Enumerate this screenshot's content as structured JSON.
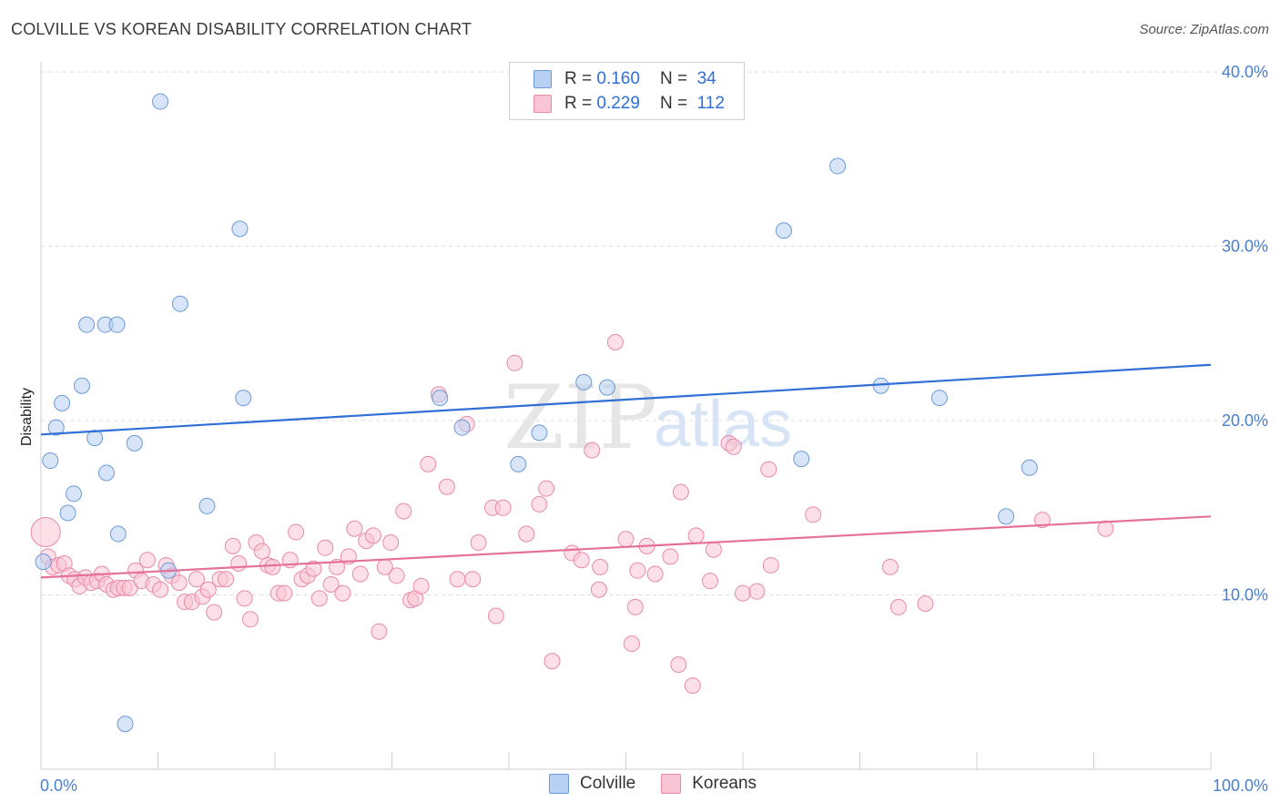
{
  "title": "COLVILLE VS KOREAN DISABILITY CORRELATION CHART",
  "source": "Source: ZipAtlas.com",
  "legend": {
    "rows": [
      {
        "r_label": "R =",
        "r_value": "0.160",
        "n_label": "N =",
        "n_value": "34",
        "fill": "#b8d0f3",
        "stroke": "#6b9ad8"
      },
      {
        "r_label": "R =",
        "r_value": "0.229",
        "n_label": "N =",
        "n_value": "112",
        "fill": "#f9c4d4",
        "stroke": "#e88aa8"
      }
    ]
  },
  "bottom_legend": [
    {
      "label": "Colville",
      "fill": "#b8d0f3",
      "stroke": "#6b9ad8"
    },
    {
      "label": "Koreans",
      "fill": "#f9c4d4",
      "stroke": "#e88aa8"
    }
  ],
  "watermark": {
    "zip": "ZIP",
    "atlas": "atlas"
  },
  "chart_data": {
    "type": "scatter",
    "ylabel": "Disability",
    "xlim": [
      0,
      100
    ],
    "ylim": [
      0,
      40
    ],
    "x_tick_labels": [
      "0.0%",
      "100.0%"
    ],
    "y_ticks": [
      10,
      20,
      30,
      40
    ],
    "y_tick_labels": [
      "10.0%",
      "20.0%",
      "30.0%",
      "40.0%"
    ],
    "grid": "horizontal dashed",
    "series": [
      {
        "name": "Colville",
        "color": "#2f6fd6",
        "fill": "#b8d0f3",
        "stroke": "#6b9ad8",
        "trend": {
          "x": [
            0,
            100
          ],
          "y": [
            19.2,
            23.2
          ]
        },
        "points": [
          [
            0.2,
            11.9
          ],
          [
            0.8,
            17.7
          ],
          [
            1.3,
            19.6
          ],
          [
            1.8,
            21.0
          ],
          [
            2.3,
            14.7
          ],
          [
            2.8,
            15.8
          ],
          [
            3.5,
            22.0
          ],
          [
            3.9,
            25.5
          ],
          [
            4.6,
            19.0
          ],
          [
            5.6,
            17.0
          ],
          [
            5.5,
            25.5
          ],
          [
            6.5,
            25.5
          ],
          [
            6.6,
            13.5
          ],
          [
            7.2,
            2.6
          ],
          [
            8.0,
            18.7
          ],
          [
            10.2,
            38.3
          ],
          [
            10.9,
            11.4
          ],
          [
            11.9,
            26.7
          ],
          [
            14.2,
            15.1
          ],
          [
            17.0,
            31.0
          ],
          [
            17.3,
            21.3
          ],
          [
            34.1,
            21.3
          ],
          [
            36.0,
            19.6
          ],
          [
            40.8,
            17.5
          ],
          [
            42.6,
            19.3
          ],
          [
            46.4,
            22.2
          ],
          [
            48.4,
            21.9
          ],
          [
            63.5,
            30.9
          ],
          [
            65.0,
            17.8
          ],
          [
            68.1,
            34.6
          ],
          [
            71.8,
            22.0
          ],
          [
            76.8,
            21.3
          ],
          [
            82.5,
            14.5
          ],
          [
            84.5,
            17.3
          ]
        ]
      },
      {
        "name": "Koreans",
        "color": "#e5709a",
        "fill": "#f9c4d4",
        "stroke": "#e88aa8",
        "trend": {
          "x": [
            0,
            100
          ],
          "y": [
            11.0,
            14.5
          ]
        },
        "points": [
          [
            0.4,
            13.6
          ],
          [
            0.6,
            12.2
          ],
          [
            1.0,
            11.6
          ],
          [
            1.5,
            11.7
          ],
          [
            2.0,
            11.8
          ],
          [
            2.4,
            11.1
          ],
          [
            2.9,
            10.9
          ],
          [
            3.3,
            10.5
          ],
          [
            3.8,
            11.0
          ],
          [
            4.3,
            10.7
          ],
          [
            4.8,
            10.8
          ],
          [
            5.2,
            11.2
          ],
          [
            5.6,
            10.6
          ],
          [
            6.2,
            10.3
          ],
          [
            6.6,
            10.4
          ],
          [
            7.1,
            10.4
          ],
          [
            7.6,
            10.4
          ],
          [
            8.1,
            11.4
          ],
          [
            8.6,
            10.8
          ],
          [
            9.1,
            12.0
          ],
          [
            9.6,
            10.6
          ],
          [
            10.2,
            10.3
          ],
          [
            10.7,
            11.7
          ],
          [
            11.2,
            11.1
          ],
          [
            11.8,
            10.7
          ],
          [
            12.3,
            9.6
          ],
          [
            12.9,
            9.6
          ],
          [
            13.3,
            10.9
          ],
          [
            13.8,
            9.9
          ],
          [
            14.3,
            10.3
          ],
          [
            14.8,
            9.0
          ],
          [
            15.3,
            10.9
          ],
          [
            15.8,
            10.9
          ],
          [
            16.4,
            12.8
          ],
          [
            16.9,
            11.8
          ],
          [
            17.4,
            9.8
          ],
          [
            17.9,
            8.6
          ],
          [
            18.4,
            13.0
          ],
          [
            18.9,
            12.5
          ],
          [
            19.4,
            11.7
          ],
          [
            19.8,
            11.6
          ],
          [
            20.3,
            10.1
          ],
          [
            20.8,
            10.1
          ],
          [
            21.3,
            12.0
          ],
          [
            21.8,
            13.6
          ],
          [
            22.3,
            10.9
          ],
          [
            22.8,
            11.1
          ],
          [
            23.3,
            11.5
          ],
          [
            23.8,
            9.8
          ],
          [
            24.3,
            12.7
          ],
          [
            24.8,
            10.6
          ],
          [
            25.3,
            11.6
          ],
          [
            25.8,
            10.1
          ],
          [
            26.3,
            12.2
          ],
          [
            26.8,
            13.8
          ],
          [
            27.3,
            11.2
          ],
          [
            27.8,
            13.1
          ],
          [
            28.4,
            13.4
          ],
          [
            28.9,
            7.9
          ],
          [
            29.4,
            11.6
          ],
          [
            29.9,
            13.0
          ],
          [
            30.4,
            11.1
          ],
          [
            31.0,
            14.8
          ],
          [
            31.6,
            9.7
          ],
          [
            32.0,
            9.8
          ],
          [
            32.5,
            10.5
          ],
          [
            33.1,
            17.5
          ],
          [
            34.0,
            21.5
          ],
          [
            34.7,
            16.2
          ],
          [
            35.6,
            10.9
          ],
          [
            36.4,
            19.8
          ],
          [
            36.9,
            10.9
          ],
          [
            37.4,
            13.0
          ],
          [
            38.6,
            15.0
          ],
          [
            38.9,
            8.8
          ],
          [
            39.5,
            15.0
          ],
          [
            40.5,
            23.3
          ],
          [
            41.5,
            13.5
          ],
          [
            42.6,
            15.2
          ],
          [
            43.2,
            16.1
          ],
          [
            43.7,
            6.2
          ],
          [
            45.4,
            12.4
          ],
          [
            46.2,
            12.0
          ],
          [
            47.1,
            18.3
          ],
          [
            47.7,
            10.3
          ],
          [
            47.8,
            11.6
          ],
          [
            49.1,
            24.5
          ],
          [
            50.0,
            13.2
          ],
          [
            50.5,
            7.2
          ],
          [
            50.8,
            9.3
          ],
          [
            51.0,
            11.4
          ],
          [
            51.8,
            12.8
          ],
          [
            52.5,
            11.2
          ],
          [
            53.8,
            12.2
          ],
          [
            54.5,
            6.0
          ],
          [
            54.7,
            15.9
          ],
          [
            55.7,
            4.8
          ],
          [
            56.0,
            13.4
          ],
          [
            57.5,
            12.6
          ],
          [
            57.2,
            10.8
          ],
          [
            58.8,
            18.7
          ],
          [
            59.2,
            18.5
          ],
          [
            60.0,
            10.1
          ],
          [
            61.2,
            10.2
          ],
          [
            62.2,
            17.2
          ],
          [
            62.4,
            11.7
          ],
          [
            66.0,
            14.6
          ],
          [
            72.6,
            11.6
          ],
          [
            73.3,
            9.3
          ],
          [
            75.6,
            9.5
          ],
          [
            85.6,
            14.3
          ],
          [
            91.0,
            13.8
          ]
        ]
      }
    ]
  }
}
